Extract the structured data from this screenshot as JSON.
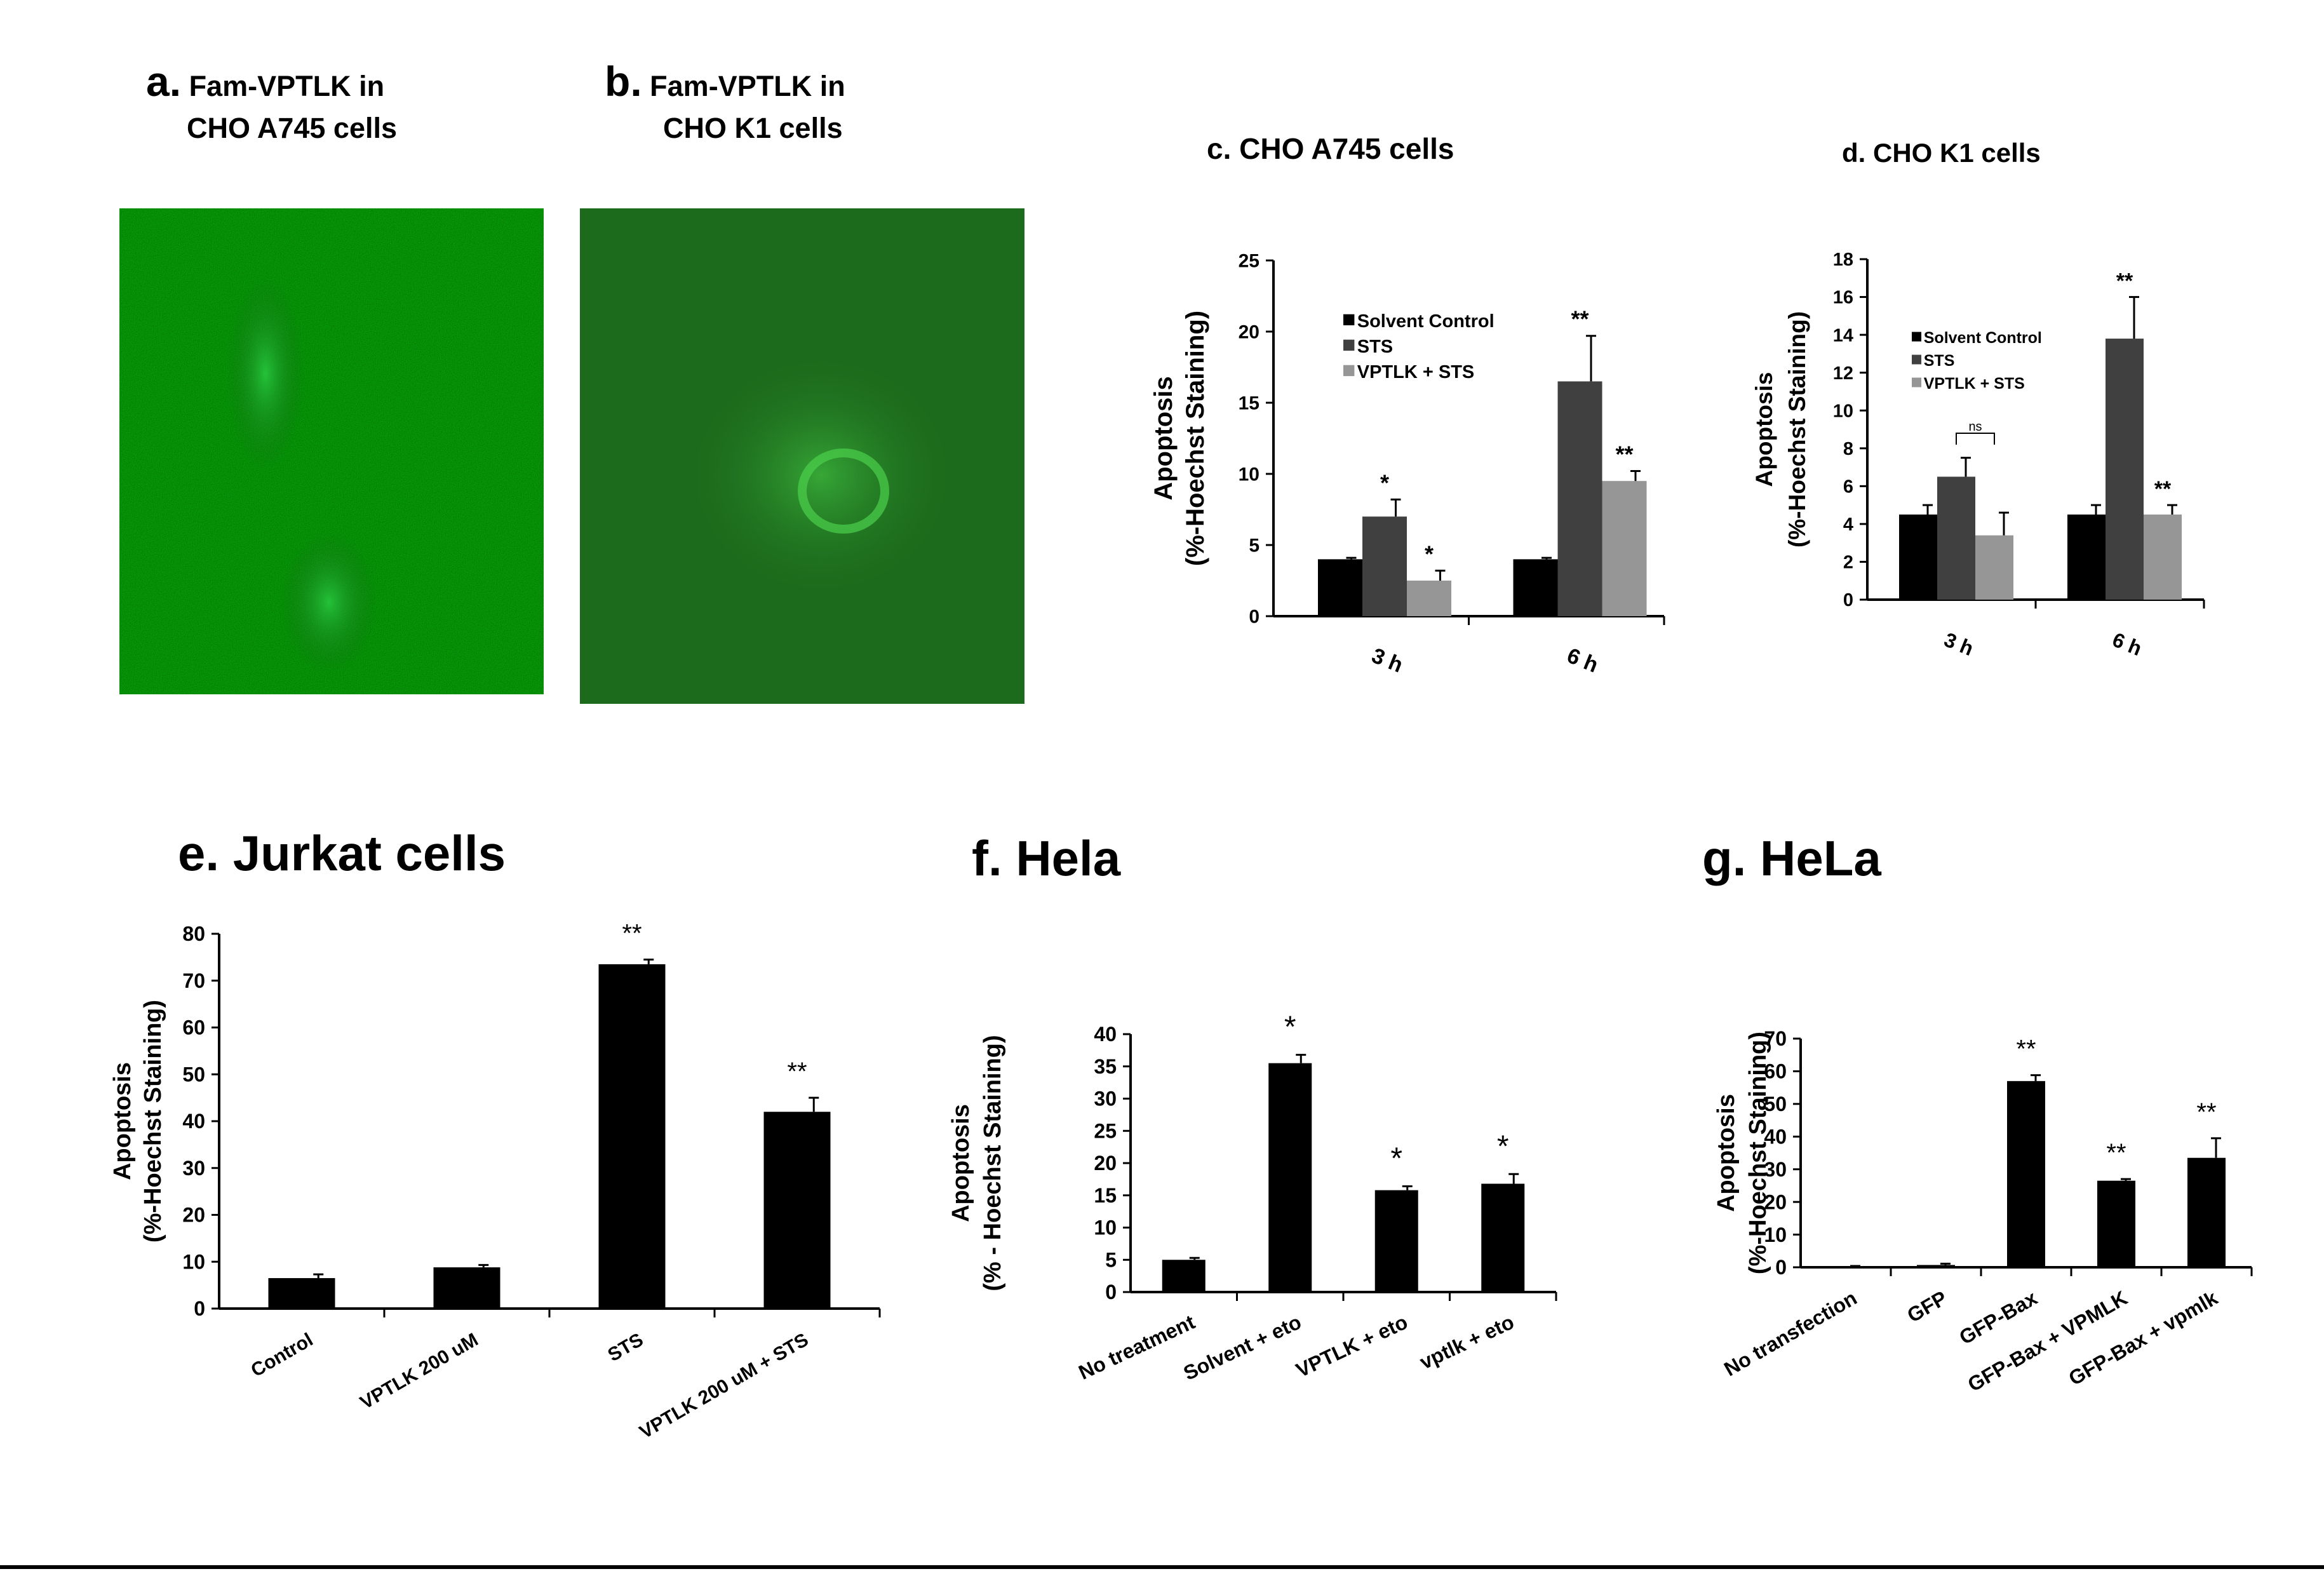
{
  "panels": {
    "a": {
      "letter": "a.",
      "line1": "Fam-VPTLK in",
      "line2": "CHO A745 cells"
    },
    "b": {
      "letter": "b.",
      "line1": "Fam-VPTLK in",
      "line2": "CHO K1 cells"
    }
  },
  "chart_data": [
    {
      "id": "c",
      "type": "bar",
      "title": "c. CHO A745 cells",
      "ylabel_line1": "Apoptosis",
      "ylabel_line2": "(%-Hoechst Staining)",
      "ylim": [
        0,
        25
      ],
      "yticks": [
        0,
        5,
        10,
        15,
        20,
        25
      ],
      "categories": [
        "3 h",
        "6 h"
      ],
      "series": [
        {
          "name": "Solvent Control",
          "color": "#000000",
          "values": [
            4,
            4
          ],
          "errors": [
            0.1,
            0.1
          ],
          "sig": [
            "",
            ""
          ]
        },
        {
          "name": "STS",
          "color": "#404040",
          "values": [
            7,
            16.5
          ],
          "errors": [
            1.2,
            3.2
          ],
          "sig": [
            "*",
            "**"
          ]
        },
        {
          "name": "VPTLK + STS",
          "color": "#969696",
          "values": [
            2.5,
            9.5
          ],
          "errors": [
            0.7,
            0.7
          ],
          "sig": [
            "*",
            "**"
          ]
        }
      ],
      "legend": "upper-left",
      "grid": false
    },
    {
      "id": "d",
      "type": "bar",
      "title": "d. CHO K1 cells",
      "ylabel_line1": "Apoptosis",
      "ylabel_line2": "(%-Hoechst Staining)",
      "ylim": [
        0,
        18
      ],
      "yticks": [
        0,
        2,
        4,
        6,
        8,
        10,
        12,
        14,
        16,
        18
      ],
      "categories": [
        "3 h",
        "6 h"
      ],
      "series": [
        {
          "name": "Solvent Control",
          "color": "#000000",
          "values": [
            4.5,
            4.5
          ],
          "errors": [
            0.5,
            0.5
          ],
          "sig": [
            "",
            ""
          ]
        },
        {
          "name": "STS",
          "color": "#404040",
          "values": [
            6.5,
            13.8
          ],
          "errors": [
            1.0,
            2.2
          ],
          "sig": [
            "",
            "**"
          ]
        },
        {
          "name": "VPTLK + STS",
          "color": "#969696",
          "values": [
            3.4,
            4.5
          ],
          "errors": [
            1.2,
            0.5
          ],
          "sig": [
            "",
            "**"
          ]
        }
      ],
      "ns_label": "ns",
      "legend": "upper-left",
      "grid": false
    },
    {
      "id": "e",
      "type": "bar",
      "title": "e. Jurkat cells",
      "ylabel_line1": "Apoptosis",
      "ylabel_line2": "(%-Hoechst Staining)",
      "ylim": [
        0,
        80
      ],
      "yticks": [
        0,
        10,
        20,
        30,
        40,
        50,
        60,
        70,
        80
      ],
      "categories": [
        "Control",
        "VPTLK 200 uM",
        "STS",
        "VPTLK 200 uM + STS"
      ],
      "values": [
        6.5,
        8.8,
        73.5,
        42
      ],
      "errors": [
        0.8,
        0.5,
        1.0,
        3.0
      ],
      "sig": [
        "",
        "",
        "**",
        "**"
      ],
      "color": "#000000",
      "grid": false
    },
    {
      "id": "f",
      "type": "bar",
      "title": "f. Hela",
      "ylabel_line1": "Apoptosis",
      "ylabel_line2": "(% - Hoechst  Staining)",
      "ylim": [
        0,
        40
      ],
      "yticks": [
        0,
        5,
        10,
        15,
        20,
        25,
        30,
        35,
        40
      ],
      "categories": [
        "No treatment",
        "Solvent + eto",
        "VPTLK + eto",
        "vptlk + eto"
      ],
      "values": [
        5,
        35.5,
        15.8,
        16.8
      ],
      "errors": [
        0.3,
        1.3,
        0.6,
        1.5
      ],
      "sig": [
        "",
        "*",
        "*",
        "*"
      ],
      "color": "#000000",
      "grid": false
    },
    {
      "id": "g",
      "type": "bar",
      "title": "g. HeLa",
      "ylabel_line1": "Apoptosis",
      "ylabel_line2": "(%-Hoechst Staining)",
      "ylim": [
        0,
        70
      ],
      "yticks": [
        0,
        10,
        20,
        30,
        40,
        50,
        60,
        70
      ],
      "categories": [
        "No transfection",
        "GFP",
        "GFP-Bax",
        "GFP-Bax + VPMLK",
        "GFP-Bax + vpmlk"
      ],
      "values": [
        0.3,
        0.7,
        57,
        26.5,
        33.5
      ],
      "errors": [
        0.1,
        0.4,
        1.8,
        0.5,
        6
      ],
      "sig": [
        "",
        "",
        "**",
        "**",
        "**"
      ],
      "color": "#000000",
      "grid": false
    }
  ]
}
